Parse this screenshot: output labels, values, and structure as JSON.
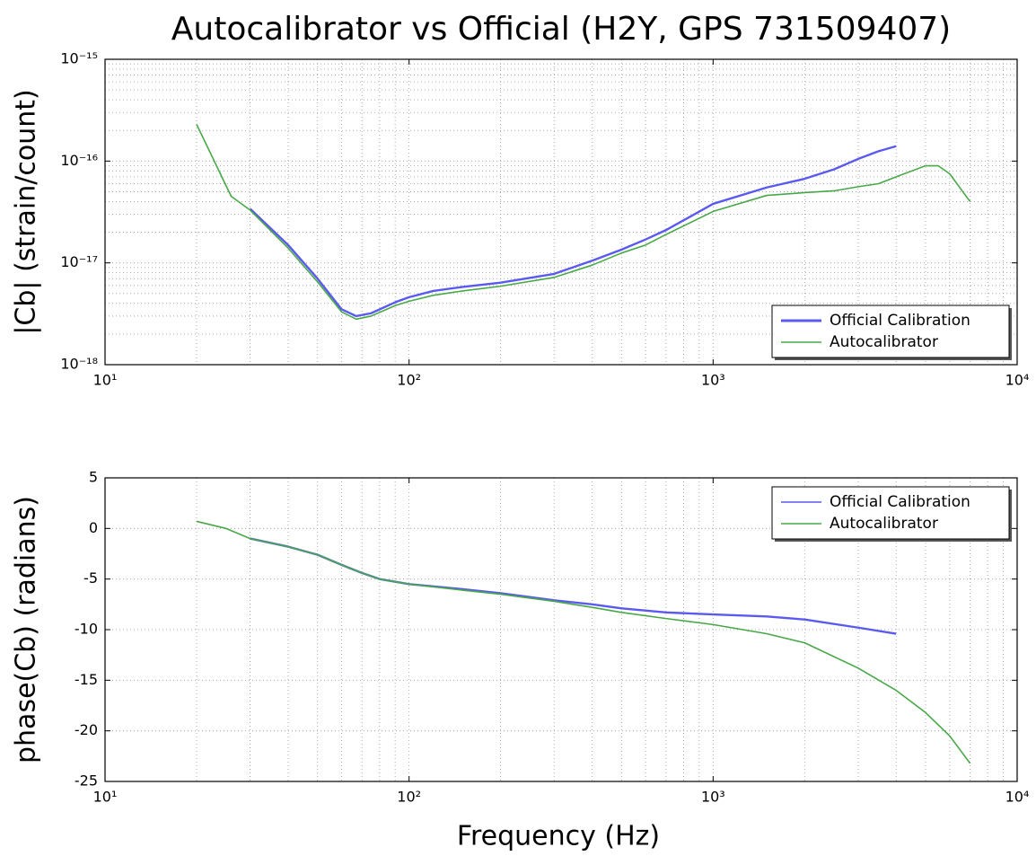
{
  "chart_data": [
    {
      "type": "line",
      "title": "Autocalibrator vs Official (H2Y, GPS 731509407)",
      "ylabel": "|Cb| (strain/count)",
      "xscale": "log",
      "yscale": "log",
      "xlim": [
        10,
        10000
      ],
      "ylim": [
        1e-18,
        1e-15
      ],
      "xticks": [
        {
          "value": 10,
          "label": "10¹"
        },
        {
          "value": 100,
          "label": "10²"
        },
        {
          "value": 1000,
          "label": "10³"
        },
        {
          "value": 10000,
          "label": "10⁴"
        }
      ],
      "yticks": [
        {
          "value": 1e-18,
          "label": "10⁻¹⁸"
        },
        {
          "value": 1e-17,
          "label": "10⁻¹⁷"
        },
        {
          "value": 1e-16,
          "label": "10⁻¹⁶"
        },
        {
          "value": 1e-15,
          "label": "10⁻¹⁵"
        }
      ],
      "grid": true,
      "legend": "lower right",
      "series": [
        {
          "name": "Official Calibration",
          "color": "#5a5af0",
          "x": [
            30,
            40,
            50,
            60,
            67,
            75,
            90,
            100,
            120,
            150,
            200,
            300,
            400,
            500,
            600,
            700,
            1000,
            1500,
            2000,
            2500,
            3000,
            3500,
            4000
          ],
          "values": [
            3.4e-17,
            1.5e-17,
            7e-18,
            3.5e-18,
            3e-18,
            3.2e-18,
            4.1e-18,
            4.6e-18,
            5.3e-18,
            5.8e-18,
            6.4e-18,
            7.8e-18,
            1.05e-17,
            1.35e-17,
            1.7e-17,
            2.1e-17,
            3.8e-17,
            5.5e-17,
            6.7e-17,
            8.3e-17,
            1.05e-16,
            1.25e-16,
            1.4e-16
          ]
        },
        {
          "name": "Autocalibrator",
          "color": "#48a848",
          "x": [
            20,
            26,
            30,
            40,
            50,
            60,
            67,
            75,
            90,
            100,
            120,
            150,
            200,
            300,
            400,
            500,
            600,
            700,
            1000,
            1500,
            2000,
            2500,
            3000,
            3500,
            4000,
            5000,
            5500,
            6000,
            7000
          ],
          "values": [
            2.3e-16,
            4.5e-17,
            3.3e-17,
            1.4e-17,
            6.5e-18,
            3.3e-18,
            2.8e-18,
            3e-18,
            3.8e-18,
            4.2e-18,
            4.8e-18,
            5.3e-18,
            5.9e-18,
            7.2e-18,
            9.5e-18,
            1.25e-17,
            1.5e-17,
            1.9e-17,
            3.2e-17,
            4.6e-17,
            4.9e-17,
            5.1e-17,
            5.6e-17,
            6e-17,
            7e-17,
            9e-17,
            9e-17,
            7.5e-17,
            4e-17
          ]
        }
      ]
    },
    {
      "type": "line",
      "ylabel": "phase(Cb) (radians)",
      "xlabel": "Frequency (Hz)",
      "xscale": "log",
      "xlim": [
        10,
        10000
      ],
      "ylim": [
        -25,
        5
      ],
      "xticks": [
        {
          "value": 10,
          "label": "10¹"
        },
        {
          "value": 100,
          "label": "10²"
        },
        {
          "value": 1000,
          "label": "10³"
        },
        {
          "value": 10000,
          "label": "10⁴"
        }
      ],
      "yticks": [
        -25,
        -20,
        -15,
        -10,
        -5,
        0,
        5
      ],
      "grid": true,
      "legend": "upper right",
      "series": [
        {
          "name": "Official Calibration",
          "color": "#5a5af0",
          "x": [
            30,
            40,
            50,
            60,
            70,
            80,
            100,
            150,
            200,
            300,
            400,
            500,
            700,
            1000,
            1500,
            2000,
            3000,
            4000
          ],
          "values": [
            -1.0,
            -1.8,
            -2.6,
            -3.6,
            -4.4,
            -5.0,
            -5.5,
            -6.0,
            -6.4,
            -7.1,
            -7.5,
            -7.9,
            -8.3,
            -8.5,
            -8.7,
            -9.0,
            -9.8,
            -10.4
          ]
        },
        {
          "name": "Autocalibrator",
          "color": "#48a848",
          "x": [
            20,
            25,
            30,
            40,
            50,
            60,
            70,
            80,
            100,
            150,
            200,
            300,
            400,
            500,
            700,
            1000,
            1500,
            2000,
            3000,
            4000,
            5000,
            6000,
            7000
          ],
          "values": [
            0.7,
            0,
            -1.0,
            -1.8,
            -2.6,
            -3.6,
            -4.4,
            -5.0,
            -5.5,
            -6.1,
            -6.5,
            -7.2,
            -7.8,
            -8.3,
            -8.9,
            -9.5,
            -10.4,
            -11.3,
            -13.8,
            -16.0,
            -18.2,
            -20.5,
            -23.2
          ]
        }
      ]
    }
  ]
}
